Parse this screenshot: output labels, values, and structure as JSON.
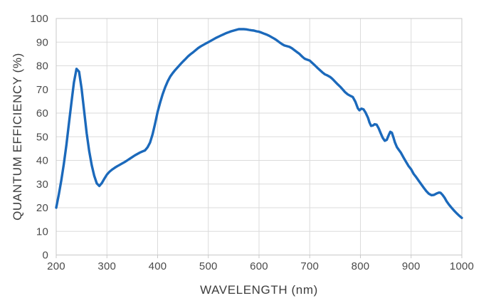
{
  "page": {
    "background": "#FFFFFF",
    "description": "Quantum efficiency curve of a camera sensor"
  },
  "style": {
    "line_color": "#1B69BB",
    "grid_color": "#DBDBDB",
    "axis_color": "#C8C8C8",
    "tick_color": "#C8C8C8",
    "text_color": "#4A4A4A",
    "title_color": "#3D3D3D",
    "line_width": 3.4
  },
  "chart_data": {
    "type": "line",
    "title": "",
    "xlabel": "WAVELENGTH (nm)",
    "ylabel": "QUANTUM EFFICIENCY (%)",
    "xlim": [
      200,
      1000
    ],
    "ylim": [
      0,
      100
    ],
    "x_ticks": [
      200,
      300,
      400,
      500,
      600,
      700,
      800,
      900,
      1000
    ],
    "y_ticks": [
      0,
      10,
      20,
      30,
      40,
      50,
      60,
      70,
      80,
      90,
      100
    ],
    "grid": true,
    "legend_position": "none",
    "series": [
      {
        "name": "quantum-efficiency",
        "color": "#1B69BB",
        "x": [
          200,
          205,
          210,
          215,
          220,
          225,
          230,
          235,
          240,
          245,
          250,
          255,
          260,
          265,
          270,
          275,
          280,
          285,
          290,
          295,
          300,
          305,
          310,
          315,
          320,
          325,
          330,
          335,
          340,
          345,
          350,
          355,
          360,
          365,
          370,
          375,
          380,
          385,
          390,
          395,
          400,
          405,
          410,
          415,
          420,
          425,
          430,
          435,
          440,
          445,
          450,
          455,
          460,
          465,
          470,
          475,
          480,
          485,
          490,
          495,
          500,
          505,
          510,
          515,
          520,
          525,
          530,
          535,
          540,
          545,
          550,
          555,
          560,
          565,
          570,
          575,
          580,
          585,
          590,
          595,
          600,
          605,
          610,
          615,
          620,
          625,
          630,
          635,
          640,
          645,
          650,
          655,
          660,
          665,
          670,
          675,
          680,
          685,
          690,
          695,
          700,
          705,
          710,
          715,
          720,
          725,
          730,
          735,
          740,
          745,
          750,
          755,
          760,
          765,
          770,
          775,
          780,
          785,
          790,
          795,
          798,
          802,
          806,
          810,
          815,
          818,
          821,
          825,
          828,
          832,
          836,
          840,
          844,
          848,
          852,
          856,
          859,
          862,
          865,
          868,
          872,
          876,
          880,
          885,
          890,
          895,
          900,
          905,
          910,
          915,
          920,
          925,
          930,
          935,
          940,
          945,
          950,
          955,
          958,
          962,
          966,
          970,
          975,
          980,
          985,
          990,
          995,
          1000
        ],
        "y": [
          20,
          25.5,
          31.5,
          38.5,
          46.5,
          55.5,
          64.5,
          73,
          78.7,
          77.5,
          70.5,
          61,
          51.5,
          44,
          38,
          33.5,
          30.3,
          29.2,
          30.4,
          32.3,
          34,
          35.2,
          36.1,
          36.8,
          37.5,
          38.1,
          38.7,
          39.3,
          40,
          40.7,
          41.4,
          42.1,
          42.7,
          43.3,
          43.8,
          44.2,
          45.5,
          47.5,
          51,
          55.5,
          60.5,
          64.5,
          68,
          71,
          73.5,
          75.5,
          77,
          78.3,
          79.5,
          80.7,
          81.8,
          82.9,
          84,
          84.9,
          85.7,
          86.6,
          87.5,
          88.2,
          88.8,
          89.4,
          90,
          90.6,
          91.2,
          91.8,
          92.3,
          92.8,
          93.3,
          93.8,
          94.2,
          94.6,
          94.9,
          95.2,
          95.5,
          95.5,
          95.5,
          95.4,
          95.2,
          95,
          94.9,
          94.6,
          94.4,
          94,
          93.6,
          93.2,
          92.7,
          92.1,
          91.5,
          90.8,
          90,
          89.2,
          88.6,
          88.3,
          88,
          87.4,
          86.6,
          85.8,
          85,
          83.9,
          83,
          82.6,
          82.2,
          81.2,
          80.2,
          79.2,
          78.2,
          77.2,
          76.4,
          75.9,
          75.3,
          74.4,
          73.3,
          72.2,
          71.2,
          70,
          68.8,
          67.9,
          67.3,
          66.8,
          64.8,
          62,
          61.2,
          61.9,
          61.6,
          60.3,
          58,
          56,
          54.6,
          54.8,
          55.3,
          55.1,
          53.6,
          51.5,
          49.5,
          48.3,
          48.7,
          50.8,
          52.1,
          51.7,
          49.8,
          47.6,
          45.6,
          44.4,
          43.2,
          41.2,
          39.4,
          37.6,
          36.2,
          34.3,
          32.9,
          31.4,
          29.9,
          28.4,
          27,
          25.9,
          25.3,
          25.4,
          26,
          26.4,
          26.3,
          25.4,
          24.2,
          22.7,
          21.2,
          19.9,
          18.7,
          17.6,
          16.6,
          15.7
        ]
      }
    ]
  }
}
